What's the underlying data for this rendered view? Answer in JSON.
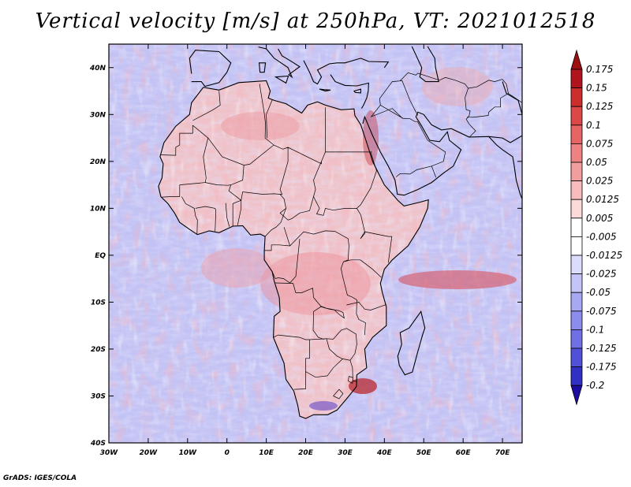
{
  "title": "Vertical velocity [m/s] at 250hPa, VT: 2021012518",
  "credit": "GrADS: IGES/COLA",
  "map": {
    "lon_range": [
      -30,
      75
    ],
    "lat_range": [
      -40,
      45
    ],
    "lon_labels": [
      {
        "lon": -30,
        "text": "30W"
      },
      {
        "lon": -20,
        "text": "20W"
      },
      {
        "lon": -10,
        "text": "10W"
      },
      {
        "lon": 0,
        "text": "0"
      },
      {
        "lon": 10,
        "text": "10E"
      },
      {
        "lon": 20,
        "text": "20E"
      },
      {
        "lon": 30,
        "text": "30E"
      },
      {
        "lon": 40,
        "text": "40E"
      },
      {
        "lon": 50,
        "text": "50E"
      },
      {
        "lon": 60,
        "text": "60E"
      },
      {
        "lon": 70,
        "text": "70E"
      }
    ],
    "lat_labels": [
      {
        "lat": 40,
        "text": "40N"
      },
      {
        "lat": 30,
        "text": "30N"
      },
      {
        "lat": 20,
        "text": "20N"
      },
      {
        "lat": 10,
        "text": "10N"
      },
      {
        "lat": 0,
        "text": "EQ"
      },
      {
        "lat": -10,
        "text": "10S"
      },
      {
        "lat": -20,
        "text": "20S"
      },
      {
        "lat": -30,
        "text": "30S"
      },
      {
        "lat": -40,
        "text": "40S"
      }
    ]
  },
  "colorbar": {
    "levels": [
      {
        "label": "0.175",
        "color": "#b0141c"
      },
      {
        "label": "0.15",
        "color": "#cc2e2e"
      },
      {
        "label": "0.125",
        "color": "#dc4848"
      },
      {
        "label": "0.1",
        "color": "#e66464"
      },
      {
        "label": "0.075",
        "color": "#ee8282"
      },
      {
        "label": "0.05",
        "color": "#f39e9e"
      },
      {
        "label": "0.025",
        "color": "#f8bcbc"
      },
      {
        "label": "0.0125",
        "color": "#fcdada"
      },
      {
        "label": "0.005",
        "color": "#ffffff"
      },
      {
        "label": "-0.005",
        "color": "#ffffff"
      },
      {
        "label": "-0.0125",
        "color": "#dcdcfc"
      },
      {
        "label": "-0.025",
        "color": "#c4c4f8"
      },
      {
        "label": "-0.05",
        "color": "#a8a8f2"
      },
      {
        "label": "-0.075",
        "color": "#8c8cec"
      },
      {
        "label": "-0.1",
        "color": "#7070e4"
      },
      {
        "label": "-0.125",
        "color": "#5050d8"
      },
      {
        "label": "-0.175",
        "color": "#3030c4"
      },
      {
        "label": "-0.2",
        "color": "#1c10a4"
      }
    ],
    "top_arrow_color": "#9c1010",
    "bottom_arrow_color": "#1c0ca0"
  },
  "colors": {
    "ocean_base": "#c2c2f4",
    "africa_base": "#efc2c8",
    "coastline": "#000000"
  }
}
